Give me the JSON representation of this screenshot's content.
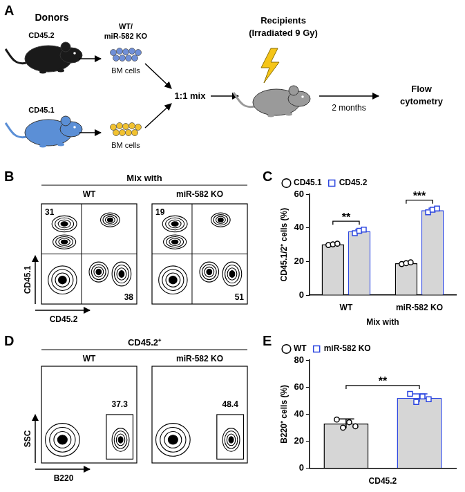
{
  "panel_labels": [
    "A",
    "B",
    "C",
    "D",
    "E"
  ],
  "diagram": {
    "donors_label": "Donors",
    "donor_top": {
      "strain": "CD45.2",
      "group": [
        "WT/",
        "miR-582 KO"
      ],
      "cells": "BM cells"
    },
    "donor_bottom": {
      "strain": "CD45.1",
      "cells": "BM cells"
    },
    "mix": "1:1 mix",
    "recipients": [
      "Recipients",
      "(Irradiated 9 Gy)"
    ],
    "time": "2 months",
    "readout": [
      "Flow",
      "cytometry"
    ]
  },
  "flow_plots": [
    {
      "header": "Mix with",
      "ylabel": "CD45.1",
      "xlabel": "CD45.2",
      "plots": [
        {
          "title": "WT",
          "gates": [
            31,
            38
          ]
        },
        {
          "title": "miR-582 KO",
          "gates": [
            19,
            51
          ]
        }
      ]
    },
    {
      "header": "CD45.2⁺",
      "ylabel": "SSC",
      "xlabel": "B220",
      "plots": [
        {
          "title": "WT",
          "gates": [
            37.3
          ]
        },
        {
          "title": "miR-582 KO",
          "gates": [
            48.4
          ]
        }
      ]
    }
  ],
  "chart_data": [
    {
      "type": "bar",
      "categories": [
        "WT",
        "miR-582 KO"
      ],
      "xlabel": "Mix with",
      "ylabel": "CD45.1/2⁺ cells (%)",
      "series": [
        {
          "name": "CD45.1",
          "color": "#000000",
          "marker": "circle",
          "values": [
            30.2,
            19.0
          ],
          "errors": [
            0.4,
            0.5
          ],
          "points": [
            [
              29.8,
              30.2,
              30.6
            ],
            [
              18.5,
              19.0,
              19.5
            ]
          ]
        },
        {
          "name": "CD45.2",
          "color": "#2b45e0",
          "marker": "square",
          "values": [
            38.0,
            50.5
          ],
          "errors": [
            1.1,
            1.2
          ],
          "points": [
            [
              36.8,
              38.3,
              39.0
            ],
            [
              49.2,
              50.8,
              51.5
            ]
          ]
        }
      ],
      "annotations": [
        {
          "text": "**",
          "category": "WT"
        },
        {
          "text": "***",
          "category": "miR-582 KO"
        }
      ],
      "ylim": [
        0,
        60
      ],
      "yticks": [
        0,
        20,
        40,
        60
      ],
      "grid": false,
      "legend": "top-left"
    },
    {
      "type": "bar",
      "categories": [
        null,
        null
      ],
      "xlabel": "CD45.2",
      "ylabel": "B220⁺ cells (%)",
      "series": [
        {
          "name": "WT",
          "color": "#000000",
          "marker": "circle",
          "values": [
            33.0,
            null
          ],
          "errors": [
            3.5,
            null
          ],
          "points": [
            [
              36.0,
              30.0,
              34.0,
              31.0
            ],
            null
          ]
        },
        {
          "name": "miR-582 KO",
          "color": "#2b45e0",
          "marker": "square",
          "values": [
            null,
            52.0
          ],
          "errors": [
            null,
            3.0
          ],
          "points": [
            null,
            [
              55.0,
              49.0,
              53.0,
              51.0
            ]
          ]
        }
      ],
      "annotations": [
        {
          "text": "**",
          "between": [
            0,
            1
          ]
        }
      ],
      "ylim": [
        0,
        80
      ],
      "yticks": [
        0,
        20,
        40,
        60,
        80
      ],
      "grid": false,
      "legend": "top-left",
      "tick_labels": "y"
    }
  ]
}
